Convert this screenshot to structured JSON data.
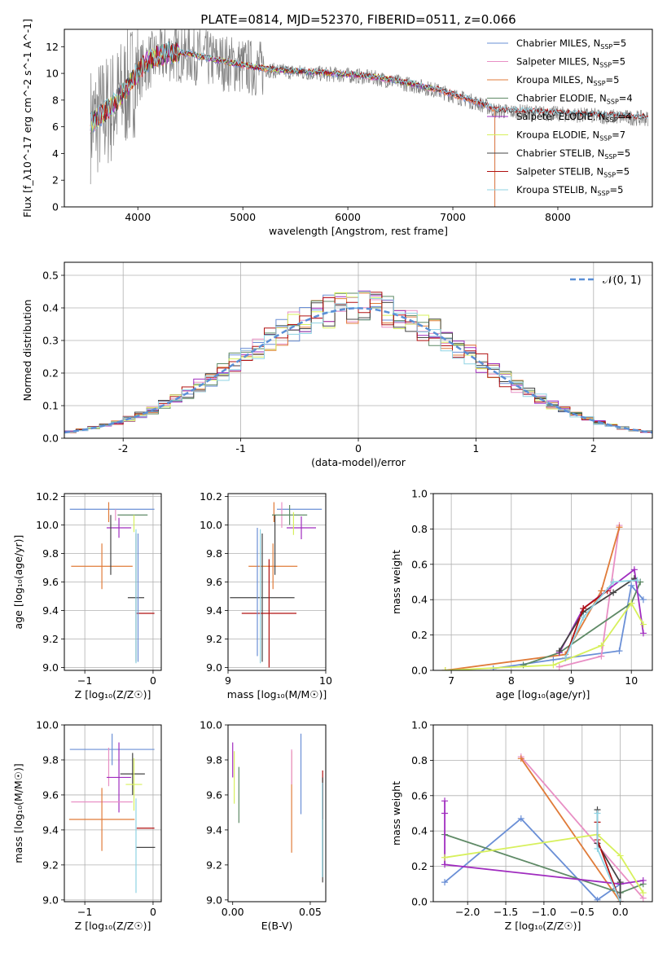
{
  "title": "PLATE=0814, MJD=52370, FIBERID=0511, z=0.066",
  "colors": {
    "chabrier_miles": "#6a8fd6",
    "salpeter_miles": "#e88fc4",
    "kroupa_miles": "#e07b39",
    "chabrier_elodie": "#5f8a66",
    "salpeter_elodie": "#a02cbf",
    "kroupa_elodie": "#d7f05c",
    "chabrier_stelib": "#444444",
    "salpeter_stelib": "#b01010",
    "kroupa_stelib": "#8fd3e3",
    "data": "#808080",
    "grid": "#b0b0b0",
    "normal_curve": "#5b8fd6"
  },
  "chart_data": [
    {
      "id": "spectrum",
      "type": "line",
      "xlabel": "wavelength [Angstrom, rest frame]",
      "ylabel": "Flux [f_λ10^-17 erg cm^-2 s^-1 A^-1]",
      "xlim": [
        3300,
        8900
      ],
      "ylim": [
        0,
        13.3
      ],
      "xticks": [
        4000,
        5000,
        6000,
        7000,
        8000
      ],
      "yticks": [
        0,
        2,
        4,
        6,
        8,
        10,
        12
      ],
      "grid": false,
      "legend_position": "top-right",
      "legend": [
        {
          "key": "chabrier_miles",
          "label": "Chabrier MILES, N",
          "sub": "SSP",
          "tail": "=5"
        },
        {
          "key": "salpeter_miles",
          "label": "Salpeter MILES, N",
          "sub": "SSP",
          "tail": "=5"
        },
        {
          "key": "kroupa_miles",
          "label": "Kroupa MILES, N",
          "sub": "SSP",
          "tail": "=5"
        },
        {
          "key": "chabrier_elodie",
          "label": "Chabrier ELODIE, N",
          "sub": "SSP",
          "tail": "=4"
        },
        {
          "key": "salpeter_elodie",
          "label": "Salpeter ELODIE, N",
          "sub": "SSP",
          "tail": "=4"
        },
        {
          "key": "kroupa_elodie",
          "label": "Kroupa ELODIE, N",
          "sub": "SSP",
          "tail": "=7"
        },
        {
          "key": "chabrier_stelib",
          "label": "Chabrier STELIB, N",
          "sub": "SSP",
          "tail": "=5"
        },
        {
          "key": "salpeter_stelib",
          "label": "Salpeter STELIB, N",
          "sub": "SSP",
          "tail": "=5"
        },
        {
          "key": "kroupa_stelib",
          "label": "Kroupa STELIB, N",
          "sub": "SSP",
          "tail": "=5"
        }
      ],
      "continuum_x": [
        3550,
        3650,
        3800,
        3950,
        4100,
        4300,
        4500,
        4700,
        4900,
        5100,
        5300,
        5500,
        5700,
        5900,
        6100,
        6300,
        6500,
        6700,
        6900,
        7100,
        7300,
        7400
      ],
      "continuum_y": [
        6.2,
        6.8,
        7.8,
        9.5,
        10.9,
        11.5,
        11.4,
        11.0,
        10.7,
        10.4,
        10.2,
        10.1,
        10.0,
        9.9,
        9.8,
        9.6,
        9.3,
        9.0,
        8.6,
        8.1,
        7.6,
        7.2
      ],
      "data_range": [
        3550,
        8860
      ]
    },
    {
      "id": "residuals",
      "type": "histogram",
      "xlabel": "(data-model)/error",
      "ylabel": "Normed distribution",
      "xlim": [
        -2.5,
        2.5
      ],
      "ylim": [
        0,
        0.54
      ],
      "xticks": [
        -2,
        -1,
        0,
        1,
        2
      ],
      "yticks": [
        0.0,
        0.1,
        0.2,
        0.3,
        0.4,
        0.5
      ],
      "grid": true,
      "legend_position": "top-right",
      "legend_label": "𝒩(0, 1)",
      "bin_width": 0.1
    },
    {
      "id": "age_vs_z",
      "type": "errorbar",
      "xlabel": "Z [log₁₀(Z/Z☉)]",
      "ylabel": "age  [log₁₀(age/yr)]",
      "xlim": [
        -1.3,
        0.12
      ],
      "ylim": [
        8.98,
        10.22
      ],
      "xticks": [
        -1,
        0
      ],
      "xtick_labels": [
        "−1",
        "0"
      ],
      "yticks": [
        9.0,
        9.2,
        9.4,
        9.6,
        9.8,
        10.0,
        10.2
      ],
      "grid": true,
      "points": [
        {
          "key": "chabrier_miles",
          "x": -0.6,
          "y": 10.11,
          "xerr": 0.62,
          "yerr": 0.0
        },
        {
          "key": "kroupa_miles",
          "x": -0.65,
          "y": 10.09,
          "xerr": 0.0,
          "yerr": 0.07
        },
        {
          "key": "salpeter_miles",
          "x": -0.55,
          "y": 10.07,
          "xerr": 0.0,
          "yerr": 0.04
        },
        {
          "key": "chabrier_elodie",
          "x": -0.3,
          "y": 10.07,
          "xerr": 0.22,
          "yerr": 0.0
        },
        {
          "key": "salpeter_elodie",
          "x": -0.5,
          "y": 9.98,
          "xerr": 0.18,
          "yerr": 0.07
        },
        {
          "key": "kroupa_elodie",
          "x": -0.28,
          "y": 10.01,
          "xerr": 0.0,
          "yerr": 0.06
        },
        {
          "key": "kroupa_miles",
          "x": -0.75,
          "y": 9.71,
          "xerr": 0.45,
          "yerr": 0.16
        },
        {
          "key": "chabrier_stelib",
          "x": -0.62,
          "y": 9.86,
          "xerr": 0.0,
          "yerr": 0.21
        },
        {
          "key": "chabrier_stelib",
          "x": -0.25,
          "y": 9.49,
          "xerr": 0.12,
          "yerr": 0.45
        },
        {
          "key": "salpeter_stelib",
          "x": -0.11,
          "y": 9.38,
          "xerr": 0.13,
          "yerr": 0.0
        },
        {
          "key": "kroupa_stelib",
          "x": -0.25,
          "y": 9.5,
          "xerr": 0.0,
          "yerr": 0.47
        },
        {
          "key": "chabrier_miles",
          "x": -0.22,
          "y": 9.49,
          "xerr": 0.0,
          "yerr": 0.45
        }
      ]
    },
    {
      "id": "age_vs_mass",
      "type": "errorbar",
      "xlabel": "mass [log₁₀(M/M☉)]",
      "ylabel": "",
      "xlim": [
        9.0,
        10.0
      ],
      "ylim": [
        8.98,
        10.22
      ],
      "xticks": [
        9,
        10
      ],
      "yticks": [
        9.0,
        9.2,
        9.4,
        9.6,
        9.8,
        10.0,
        10.2
      ],
      "grid": true,
      "points": [
        {
          "key": "chabrier_miles",
          "x": 9.73,
          "y": 10.11,
          "xerr": 0.23,
          "yerr": 0.0
        },
        {
          "key": "kroupa_miles",
          "x": 9.47,
          "y": 10.09,
          "xerr": 0.0,
          "yerr": 0.07
        },
        {
          "key": "salpeter_miles",
          "x": 9.55,
          "y": 10.07,
          "xerr": 0.0,
          "yerr": 0.09
        },
        {
          "key": "chabrier_elodie",
          "x": 9.63,
          "y": 10.07,
          "xerr": 0.18,
          "yerr": 0.07
        },
        {
          "key": "salpeter_elodie",
          "x": 9.75,
          "y": 9.98,
          "xerr": 0.15,
          "yerr": 0.08
        },
        {
          "key": "kroupa_elodie",
          "x": 9.67,
          "y": 10.01,
          "xerr": 0.0,
          "yerr": 0.08
        },
        {
          "key": "kroupa_miles",
          "x": 9.46,
          "y": 9.71,
          "xerr": 0.25,
          "yerr": 0.16
        },
        {
          "key": "chabrier_stelib",
          "x": 9.48,
          "y": 9.86,
          "xerr": 0.0,
          "yerr": 0.21
        },
        {
          "key": "chabrier_stelib",
          "x": 9.35,
          "y": 9.49,
          "xerr": 0.33,
          "yerr": 0.45
        },
        {
          "key": "salpeter_stelib",
          "x": 9.42,
          "y": 9.38,
          "xerr": 0.28,
          "yerr": 0.38
        },
        {
          "key": "kroupa_stelib",
          "x": 9.33,
          "y": 9.5,
          "xerr": 0.0,
          "yerr": 0.47
        },
        {
          "key": "chabrier_miles",
          "x": 9.3,
          "y": 9.53,
          "xerr": 0.0,
          "yerr": 0.45
        }
      ]
    },
    {
      "id": "weight_vs_age",
      "type": "line",
      "xlabel": "age  [log₁₀(age/yr)]",
      "ylabel": "mass weight",
      "xlim": [
        6.7,
        10.35
      ],
      "ylim": [
        0,
        1.0
      ],
      "xticks": [
        7,
        8,
        9,
        10
      ],
      "yticks": [
        0.0,
        0.2,
        0.4,
        0.6,
        0.8,
        1.0
      ],
      "grid": true,
      "series": [
        {
          "key": "chabrier_miles",
          "x": [
            7.7,
            8.7,
            9.8,
            10.0,
            10.2
          ],
          "y": [
            0.01,
            0.06,
            0.11,
            0.48,
            0.4
          ]
        },
        {
          "key": "salpeter_miles",
          "x": [
            8.8,
            9.5,
            9.8
          ],
          "y": [
            0.02,
            0.08,
            0.82
          ]
        },
        {
          "key": "kroupa_miles",
          "x": [
            6.9,
            8.9,
            9.5,
            9.8
          ],
          "y": [
            0.0,
            0.09,
            0.45,
            0.81
          ]
        },
        {
          "key": "chabrier_elodie",
          "x": [
            8.2,
            8.8,
            10.0,
            10.15
          ],
          "y": [
            0.03,
            0.1,
            0.38,
            0.5
          ]
        },
        {
          "key": "salpeter_elodie",
          "x": [
            8.8,
            9.2,
            10.05,
            10.2
          ],
          "y": [
            0.1,
            0.35,
            0.57,
            0.21
          ]
        },
        {
          "key": "kroupa_elodie",
          "x": [
            6.9,
            8.7,
            9.5,
            10.0,
            10.2
          ],
          "y": [
            0.0,
            0.03,
            0.14,
            0.38,
            0.26
          ]
        },
        {
          "key": "chabrier_stelib",
          "x": [
            8.8,
            9.2,
            9.7,
            10.05
          ],
          "y": [
            0.11,
            0.33,
            0.44,
            0.52
          ]
        },
        {
          "key": "salpeter_stelib",
          "x": [
            8.9,
            9.2,
            9.6
          ],
          "y": [
            0.07,
            0.35,
            0.45
          ]
        },
        {
          "key": "kroupa_stelib",
          "x": [
            8.9,
            9.2,
            9.7,
            10.1
          ],
          "y": [
            0.07,
            0.3,
            0.5,
            0.51
          ]
        }
      ]
    },
    {
      "id": "mass_vs_z",
      "type": "errorbar",
      "xlabel": "Z [log₁₀(Z/Z☉)]",
      "ylabel": "mass [log₁₀(M/M☉)]",
      "xlim": [
        -1.3,
        0.12
      ],
      "ylim": [
        8.99,
        10.0
      ],
      "xticks": [
        -1,
        0
      ],
      "xtick_labels": [
        "−1",
        "0"
      ],
      "yticks": [
        9.0,
        9.2,
        9.4,
        9.6,
        9.8,
        10.0
      ],
      "grid": true,
      "points": [
        {
          "key": "chabrier_miles",
          "x": -0.6,
          "y": 9.86,
          "xerr": 0.62,
          "yerr": 0.09
        },
        {
          "key": "salpeter_miles",
          "x": -0.65,
          "y": 9.76,
          "xerr": 0.0,
          "yerr": 0.11
        },
        {
          "key": "salpeter_elodie",
          "x": -0.5,
          "y": 9.7,
          "xerr": 0.18,
          "yerr": 0.2
        },
        {
          "key": "chabrier_stelib",
          "x": -0.3,
          "y": 9.72,
          "xerr": 0.18,
          "yerr": 0.12
        },
        {
          "key": "kroupa_elodie",
          "x": -0.28,
          "y": 9.66,
          "xerr": 0.12,
          "yerr": 0.15
        },
        {
          "key": "salpeter_miles",
          "x": -0.75,
          "y": 9.56,
          "xerr": 0.45,
          "yerr": 0.0
        },
        {
          "key": "kroupa_miles",
          "x": -0.75,
          "y": 9.46,
          "xerr": 0.48,
          "yerr": 0.18
        },
        {
          "key": "salpeter_stelib",
          "x": -0.11,
          "y": 9.41,
          "xerr": 0.13,
          "yerr": 0.0
        },
        {
          "key": "chabrier_stelib",
          "x": -0.11,
          "y": 9.3,
          "xerr": 0.14,
          "yerr": 0.0
        },
        {
          "key": "kroupa_stelib",
          "x": -0.25,
          "y": 9.31,
          "xerr": 0.0,
          "yerr": 0.27
        }
      ]
    },
    {
      "id": "mass_vs_ebv",
      "type": "errorbar",
      "xlabel": "E(B-V)",
      "ylabel": "",
      "xlim": [
        -0.003,
        0.06
      ],
      "ylim": [
        8.99,
        10.0
      ],
      "xticks": [
        0.0,
        0.05
      ],
      "xtick_labels": [
        "0.00",
        "0.05"
      ],
      "yticks": [
        9.0,
        9.2,
        9.4,
        9.6,
        9.8,
        10.0
      ],
      "grid": false,
      "points": [
        {
          "key": "salpeter_elodie",
          "x": 0.0,
          "y": 9.8,
          "xerr": 0.0,
          "yerr": 0.1
        },
        {
          "key": "kroupa_elodie",
          "x": 0.001,
          "y": 9.7,
          "xerr": 0.0,
          "yerr": 0.15
        },
        {
          "key": "chabrier_elodie",
          "x": 0.004,
          "y": 9.6,
          "xerr": 0.0,
          "yerr": 0.16
        },
        {
          "key": "kroupa_miles",
          "x": 0.038,
          "y": 9.56,
          "xerr": 0.0,
          "yerr": 0.29
        },
        {
          "key": "salpeter_miles",
          "x": 0.038,
          "y": 9.76,
          "xerr": 0.0,
          "yerr": 0.1
        },
        {
          "key": "chabrier_miles",
          "x": 0.044,
          "y": 9.72,
          "xerr": 0.0,
          "yerr": 0.23
        },
        {
          "key": "salpeter_stelib",
          "x": 0.058,
          "y": 9.6,
          "xerr": 0.0,
          "yerr": 0.14
        },
        {
          "key": "chabrier_stelib",
          "x": 0.058,
          "y": 9.4,
          "xerr": 0.0,
          "yerr": 0.3
        },
        {
          "key": "kroupa_stelib",
          "x": 0.0578,
          "y": 9.4,
          "xerr": 0.0,
          "yerr": 0.27
        }
      ]
    },
    {
      "id": "weight_vs_z",
      "type": "line",
      "xlabel": "Z [log₁₀(Z/Z☉)]",
      "ylabel": "mass weight",
      "xlim": [
        -2.45,
        0.42
      ],
      "ylim": [
        0,
        1.0
      ],
      "xticks": [
        -2.0,
        -1.5,
        -1.0,
        -0.5,
        0.0
      ],
      "xtick_labels": [
        "−2.0",
        "−1.5",
        "−1.0",
        "−0.5",
        "0.0"
      ],
      "yticks": [
        0.0,
        0.2,
        0.4,
        0.6,
        0.8,
        1.0
      ],
      "grid": true,
      "series": [
        {
          "key": "chabrier_miles",
          "x": [
            -2.3,
            -1.3,
            -0.3,
            0.0,
            0.0
          ],
          "y": [
            0.11,
            0.47,
            0.01,
            0.1,
            0.0
          ]
        },
        {
          "key": "salpeter_miles",
          "x": [
            -1.3,
            0.3
          ],
          "y": [
            0.82,
            0.02
          ]
        },
        {
          "key": "kroupa_miles",
          "x": [
            -1.3,
            0.0
          ],
          "y": [
            0.81,
            0.0
          ]
        },
        {
          "key": "chabrier_elodie",
          "x": [
            -2.3,
            0.0,
            0.3
          ],
          "y": [
            0.38,
            0.05,
            0.1
          ]
        },
        {
          "key": "salpeter_elodie",
          "x": [
            -2.3,
            -2.3,
            -2.3,
            0.0,
            0.3
          ],
          "y": [
            0.57,
            0.5,
            0.21,
            0.1,
            0.12
          ]
        },
        {
          "key": "kroupa_elodie",
          "x": [
            -2.3,
            -0.3,
            0.0,
            0.3
          ],
          "y": [
            0.25,
            0.38,
            0.26,
            0.05
          ]
        },
        {
          "key": "chabrier_stelib",
          "x": [
            -0.3,
            -0.3,
            0.0,
            0.0
          ],
          "y": [
            0.52,
            0.33,
            0.11,
            0.0
          ]
        },
        {
          "key": "salpeter_stelib",
          "x": [
            -0.3,
            -0.3,
            0.0
          ],
          "y": [
            0.45,
            0.35,
            0.0
          ]
        },
        {
          "key": "kroupa_stelib",
          "x": [
            -0.3,
            -0.3,
            0.0
          ],
          "y": [
            0.5,
            0.3,
            0.0
          ]
        }
      ]
    }
  ]
}
